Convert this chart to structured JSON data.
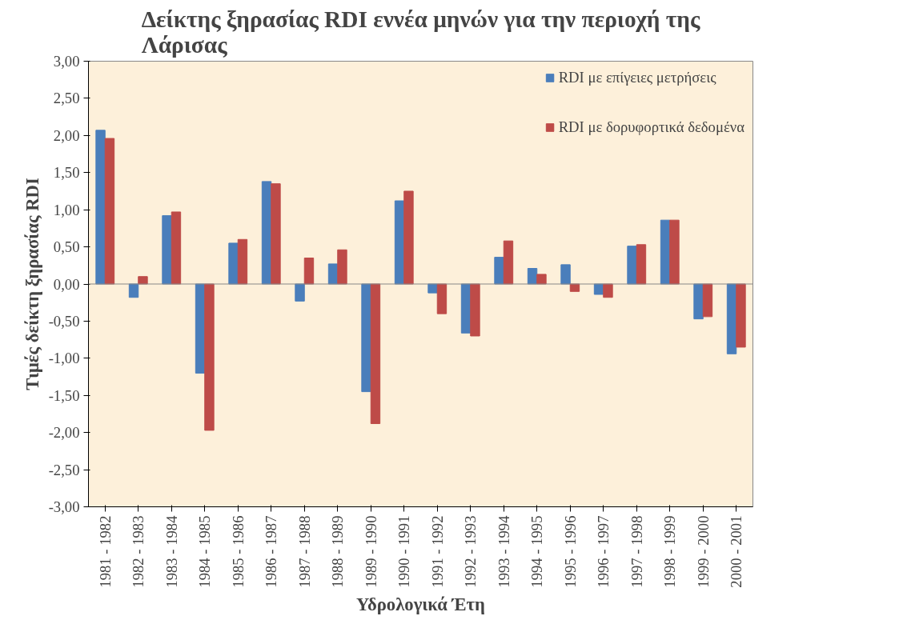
{
  "chart_data": {
    "type": "bar",
    "title": "Δείκτης ξηρασίας RDI εννέα μηνών για την περιοχή της Λάρισας",
    "xlabel": "Υδρολογικά Έτη",
    "ylabel": "Τιμές δείκτη ξηρασίας RDI",
    "categories": [
      "1981 - 1982",
      "1982 - 1983",
      "1983 - 1984",
      "1984 - 1985",
      "1985 - 1986",
      "1986 - 1987",
      "1987 - 1988",
      "1988 - 1989",
      "1989 - 1990",
      "1990 - 1991",
      "1991 - 1992",
      "1992 - 1993",
      "1993 - 1994",
      "1994 - 1995",
      "1995 - 1996",
      "1996 - 1997",
      "1997 - 1998",
      "1998 - 1999",
      "1999 - 2000",
      "2000 - 2001"
    ],
    "series": [
      {
        "name": "RDI με επίγειες μετρήσεις",
        "color": "#4a7ebb",
        "values": [
          2.07,
          -0.18,
          0.92,
          -1.2,
          0.55,
          1.38,
          -0.23,
          0.27,
          -1.45,
          1.12,
          -0.12,
          -0.66,
          0.36,
          0.21,
          0.26,
          -0.14,
          0.51,
          0.86,
          -0.47,
          -0.94
        ]
      },
      {
        "name": "RDI με δορυφορτικά δεδομένα",
        "color": "#be4b48",
        "values": [
          1.96,
          0.1,
          0.97,
          -1.97,
          0.6,
          1.35,
          0.35,
          0.46,
          -1.88,
          1.25,
          -0.4,
          -0.7,
          0.58,
          0.13,
          -0.1,
          -0.18,
          0.53,
          0.86,
          -0.44,
          -0.85
        ]
      }
    ],
    "ylim": [
      -3,
      3
    ],
    "yticks": [
      {
        "value": -3,
        "label": "-3,00"
      },
      {
        "value": -2.5,
        "label": "-2,50"
      },
      {
        "value": -2,
        "label": "-2,00"
      },
      {
        "value": -1.5,
        "label": "-1,50"
      },
      {
        "value": -1,
        "label": "-1,00"
      },
      {
        "value": -0.5,
        "label": "-0,50"
      },
      {
        "value": 0,
        "label": "0,00"
      },
      {
        "value": 0.5,
        "label": "0,50"
      },
      {
        "value": 1,
        "label": "1,00"
      },
      {
        "value": 1.5,
        "label": "1,50"
      },
      {
        "value": 2,
        "label": "2,00"
      },
      {
        "value": 2.5,
        "label": "2,50"
      },
      {
        "value": 3,
        "label": "3,00"
      }
    ],
    "ref_lines": [
      {
        "axis": "y",
        "value": 0,
        "color": "#888888"
      }
    ],
    "grid": false,
    "legend": "top right"
  }
}
